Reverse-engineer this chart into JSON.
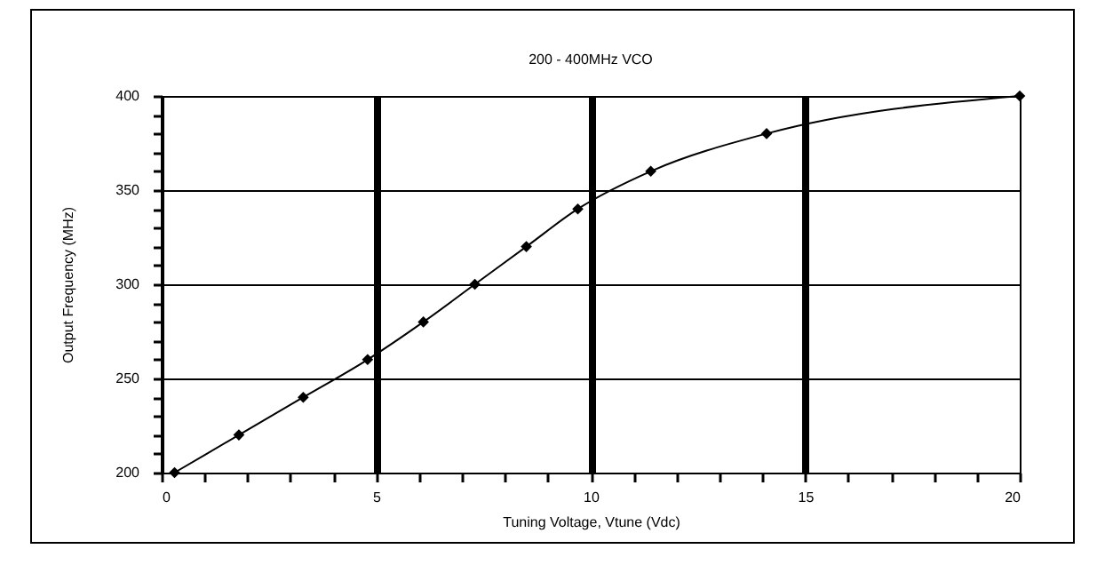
{
  "chart_data": {
    "type": "line",
    "title": "200 - 400MHz VCO",
    "xlabel": "Tuning Voltage, Vtune (Vdc)",
    "ylabel": "Output Frequency (MHz)",
    "x": [
      0.3,
      1.8,
      3.3,
      4.8,
      6.1,
      7.3,
      8.5,
      9.7,
      11.4,
      14.1,
      20
    ],
    "series": [
      {
        "color": "#000000",
        "values": [
          200,
          220,
          240,
          260,
          280,
          300,
          320,
          340,
          360,
          380,
          400
        ]
      }
    ],
    "xlim": [
      0,
      20
    ],
    "xticks": [
      0,
      {
        "value": 1,
        "label": null
      },
      {
        "value": 2,
        "label": null
      },
      {
        "value": 3,
        "label": null
      },
      {
        "value": 4,
        "label": null
      },
      5,
      {
        "value": 6,
        "label": null
      },
      {
        "value": 7,
        "label": null
      },
      {
        "value": 8,
        "label": null
      },
      {
        "value": 9,
        "label": null
      },
      10,
      {
        "value": 11,
        "label": null
      },
      {
        "value": 12,
        "label": null
      },
      {
        "value": 13,
        "label": null
      },
      {
        "value": 14,
        "label": null
      },
      15,
      {
        "value": 16,
        "label": null
      },
      {
        "value": 17,
        "label": null
      },
      {
        "value": 18,
        "label": null
      },
      {
        "value": 19,
        "label": null
      },
      20
    ],
    "ylim": [
      200,
      400
    ],
    "yticks": [
      200,
      {
        "value": 210,
        "label": null
      },
      {
        "value": 220,
        "label": null
      },
      {
        "value": 230,
        "label": null
      },
      {
        "value": 240,
        "label": null
      },
      250,
      {
        "value": 260,
        "label": null
      },
      {
        "value": 270,
        "label": null
      },
      {
        "value": 280,
        "label": null
      },
      {
        "value": 290,
        "label": null
      },
      300,
      {
        "value": 310,
        "label": null
      },
      {
        "value": 320,
        "label": null
      },
      {
        "value": 330,
        "label": null
      },
      {
        "value": 340,
        "label": null
      },
      350,
      {
        "value": 360,
        "label": null
      },
      {
        "value": 370,
        "label": null
      },
      {
        "value": 380,
        "label": null
      },
      {
        "value": 390,
        "label": null
      },
      400
    ],
    "grid": true,
    "marker": "diamond",
    "line_style": "solid"
  }
}
